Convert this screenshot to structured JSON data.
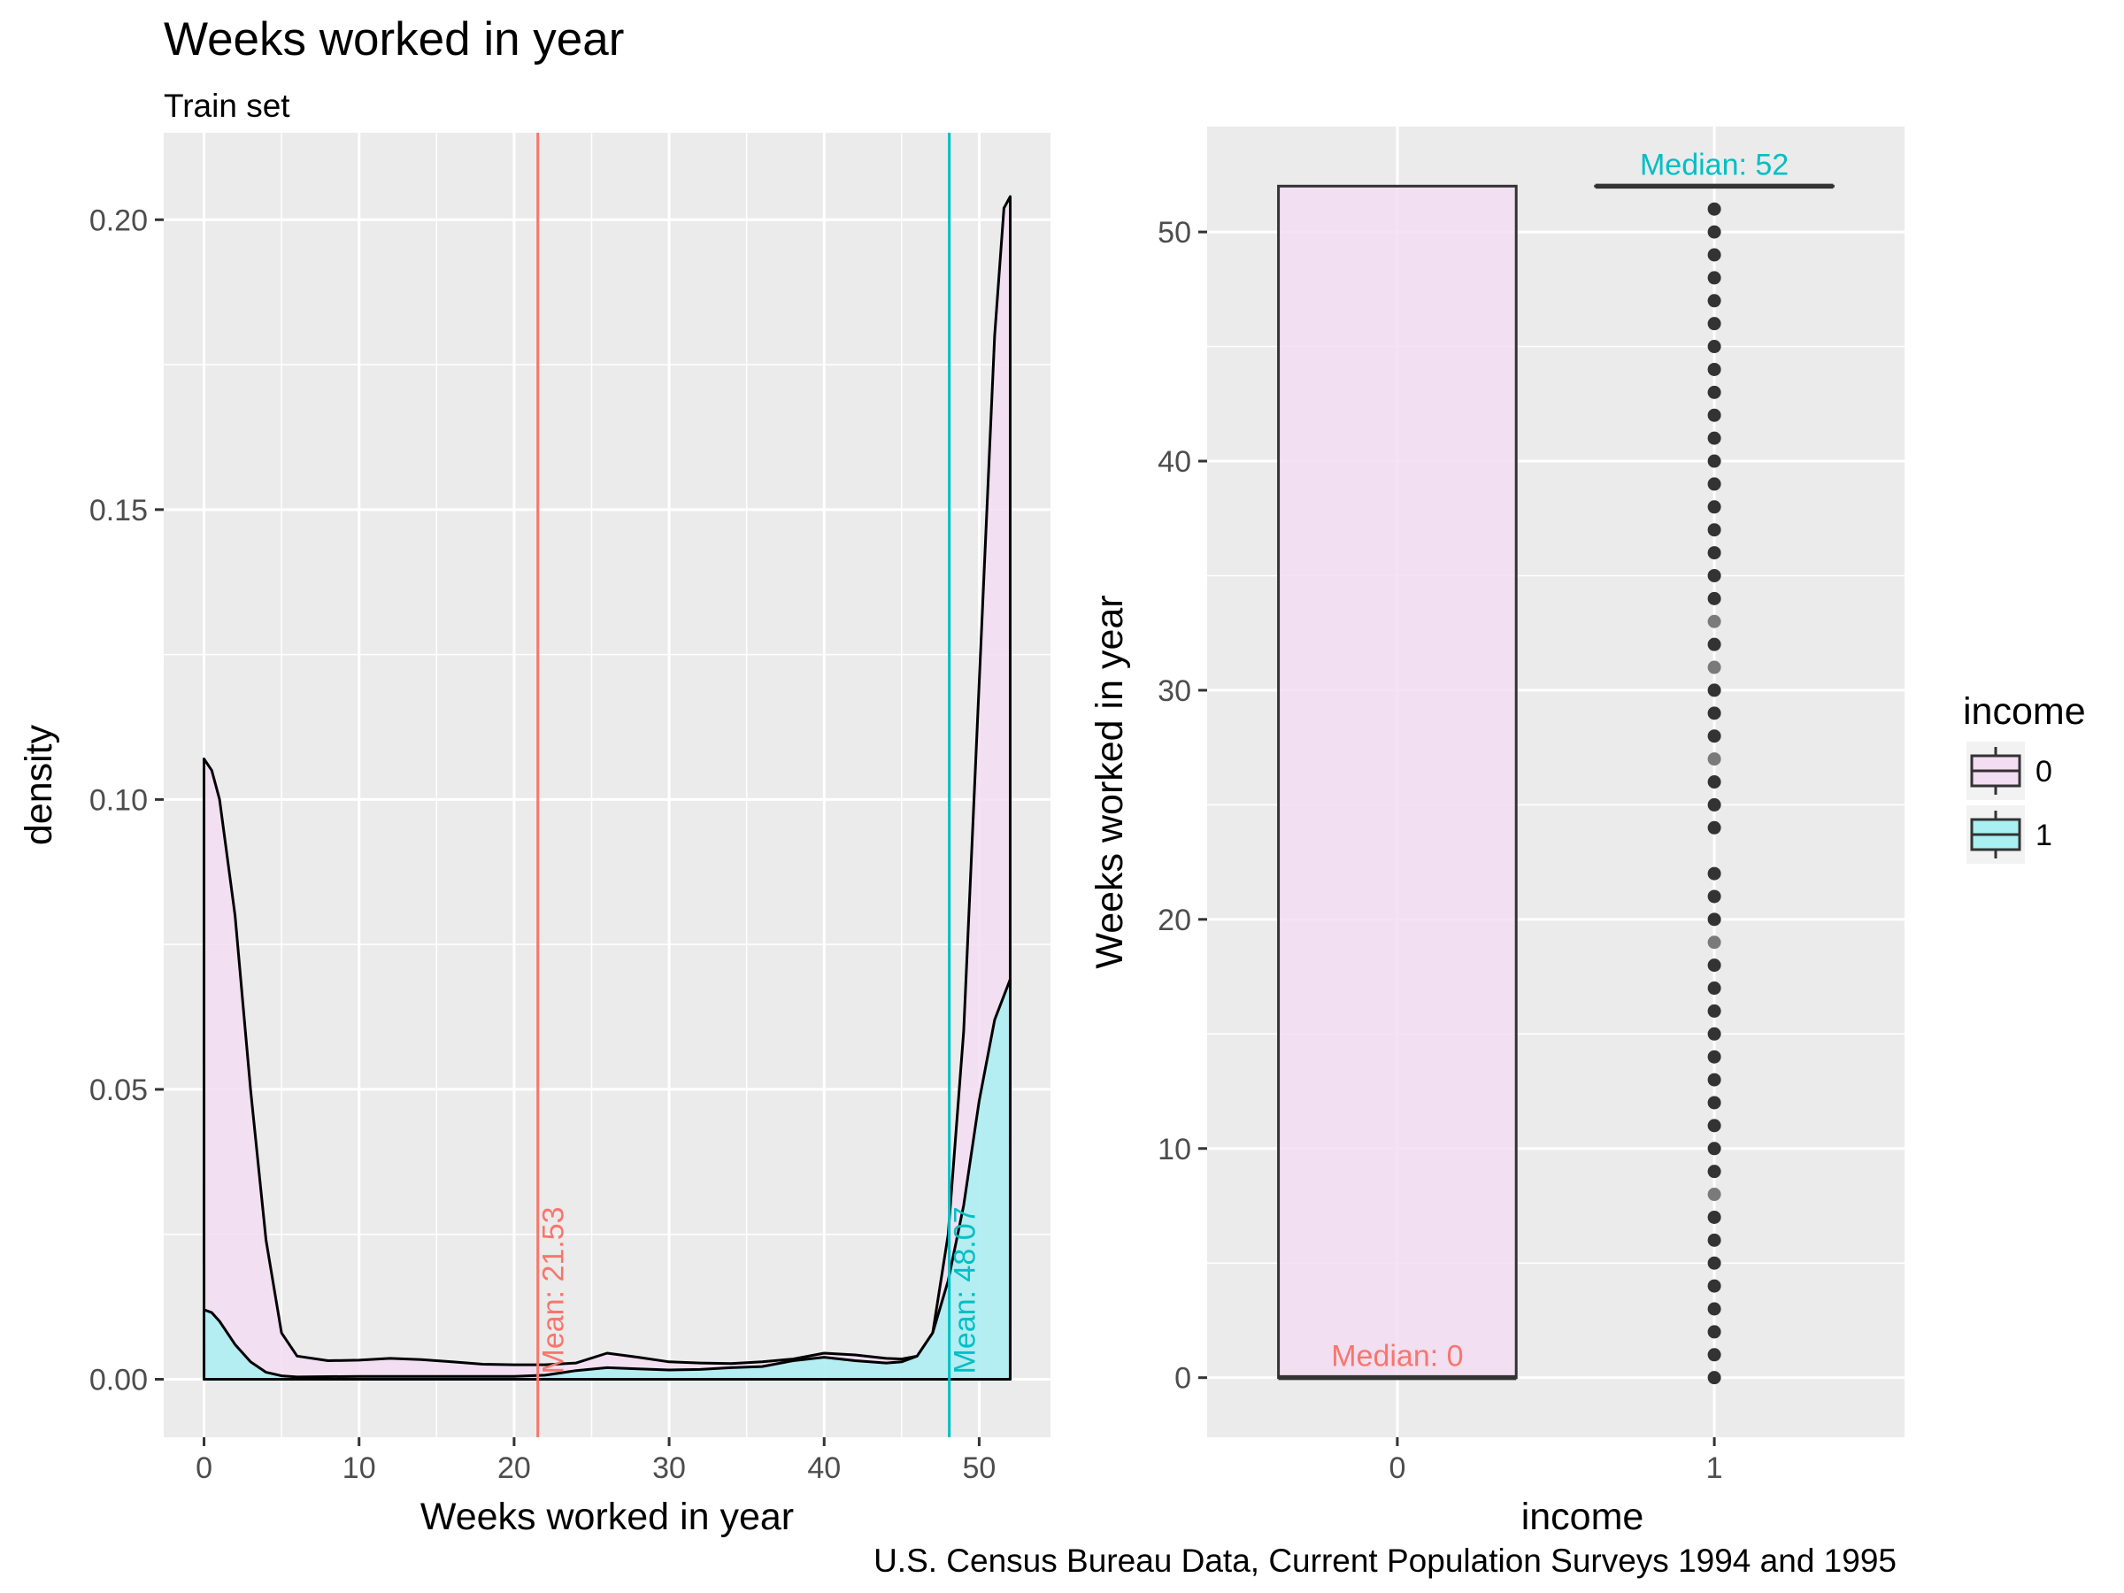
{
  "chart_data": [
    {
      "type": "area",
      "title": "Weeks worked in year",
      "subtitle": "Train set",
      "xlabel": "Weeks worked in year",
      "ylabel": "density",
      "xlim": [
        -2.6,
        54.6
      ],
      "ylim": [
        -0.01,
        0.215
      ],
      "xticks": [
        0,
        10,
        20,
        30,
        40,
        50
      ],
      "yticks": [
        0.0,
        0.05,
        0.1,
        0.15,
        0.2
      ],
      "ytick_labels": [
        "0.00",
        "0.05",
        "0.10",
        "0.15",
        "0.20"
      ],
      "grid": true,
      "series": [
        {
          "name": "0",
          "color": "#F8766D",
          "fill": "#F3DDF2",
          "points": [
            [
              0,
              0.107
            ],
            [
              0.5,
              0.105
            ],
            [
              1,
              0.1
            ],
            [
              2,
              0.08
            ],
            [
              3,
              0.05
            ],
            [
              4,
              0.024
            ],
            [
              5,
              0.008
            ],
            [
              6,
              0.004
            ],
            [
              8,
              0.0032
            ],
            [
              10,
              0.0033
            ],
            [
              12,
              0.0036
            ],
            [
              14,
              0.0034
            ],
            [
              16,
              0.003
            ],
            [
              18,
              0.0026
            ],
            [
              20,
              0.0025
            ],
            [
              22,
              0.0025
            ],
            [
              24,
              0.0028
            ],
            [
              26,
              0.0045
            ],
            [
              28,
              0.0038
            ],
            [
              30,
              0.003
            ],
            [
              32,
              0.0028
            ],
            [
              34,
              0.0027
            ],
            [
              36,
              0.003
            ],
            [
              38,
              0.0035
            ],
            [
              40,
              0.0045
            ],
            [
              42,
              0.0042
            ],
            [
              44,
              0.0036
            ],
            [
              45,
              0.0035
            ],
            [
              46,
              0.004
            ],
            [
              47,
              0.008
            ],
            [
              48,
              0.025
            ],
            [
              49,
              0.06
            ],
            [
              50,
              0.12
            ],
            [
              51,
              0.18
            ],
            [
              51.6,
              0.202
            ],
            [
              52,
              0.204
            ]
          ]
        },
        {
          "name": "1",
          "color": "#00BFC4",
          "fill": "#A9F0F2",
          "points": [
            [
              0,
              0.012
            ],
            [
              0.5,
              0.0115
            ],
            [
              1,
              0.01
            ],
            [
              2,
              0.006
            ],
            [
              3,
              0.003
            ],
            [
              4,
              0.0012
            ],
            [
              5,
              0.0006
            ],
            [
              6,
              0.0004
            ],
            [
              10,
              0.0005
            ],
            [
              15,
              0.0005
            ],
            [
              20,
              0.0005
            ],
            [
              22,
              0.0007
            ],
            [
              24,
              0.0015
            ],
            [
              26,
              0.002
            ],
            [
              28,
              0.0018
            ],
            [
              30,
              0.0016
            ],
            [
              32,
              0.0017
            ],
            [
              34,
              0.002
            ],
            [
              36,
              0.0022
            ],
            [
              38,
              0.0032
            ],
            [
              40,
              0.0038
            ],
            [
              42,
              0.0032
            ],
            [
              44,
              0.0028
            ],
            [
              45,
              0.003
            ],
            [
              46,
              0.004
            ],
            [
              47,
              0.008
            ],
            [
              48,
              0.017
            ],
            [
              49,
              0.03
            ],
            [
              50,
              0.048
            ],
            [
              51,
              0.062
            ],
            [
              52,
              0.069
            ]
          ]
        }
      ],
      "vlines": [
        {
          "x": 21.53,
          "label": "Mean: 21.53",
          "color": "#F8766D"
        },
        {
          "x": 48.07,
          "label": "Mean: 48.07",
          "color": "#00BFC4"
        }
      ]
    },
    {
      "type": "box",
      "xlabel": "income",
      "ylabel": "Weeks worked in year",
      "categories": [
        "0",
        "1"
      ],
      "ylim": [
        -2.6,
        54.6
      ],
      "yticks": [
        0,
        10,
        20,
        30,
        40,
        50
      ],
      "grid": true,
      "boxes": [
        {
          "category": "0",
          "q1": 0,
          "median": 0,
          "q3": 52,
          "fill": "#F3DDF2",
          "median_label": "Median: 0",
          "label_color": "#F8766D"
        },
        {
          "category": "1",
          "q1": 52,
          "median": 52,
          "q3": 52,
          "fill": "#A9F0F2",
          "median_label": "Median: 52",
          "label_color": "#00BFC4"
        }
      ],
      "outliers": {
        "category": "1",
        "values": [
          0,
          1,
          2,
          3,
          4,
          5,
          6,
          7,
          8,
          9,
          10,
          11,
          12,
          13,
          14,
          15,
          16,
          17,
          18,
          19,
          20,
          21,
          22,
          24,
          25,
          26,
          27,
          28,
          29,
          30,
          31,
          32,
          33,
          34,
          35,
          36,
          37,
          38,
          39,
          40,
          41,
          42,
          43,
          44,
          45,
          46,
          47,
          48,
          49,
          50,
          51
        ],
        "light_values": [
          8,
          19,
          27,
          31,
          33
        ]
      },
      "legend": {
        "title": "income",
        "position": "right",
        "entries": [
          {
            "label": "0",
            "fill": "#F3DDF2"
          },
          {
            "label": "1",
            "fill": "#A9F0F2"
          }
        ]
      }
    }
  ],
  "caption": "U.S. Census Bureau Data, Current Population Surveys 1994 and 1995"
}
